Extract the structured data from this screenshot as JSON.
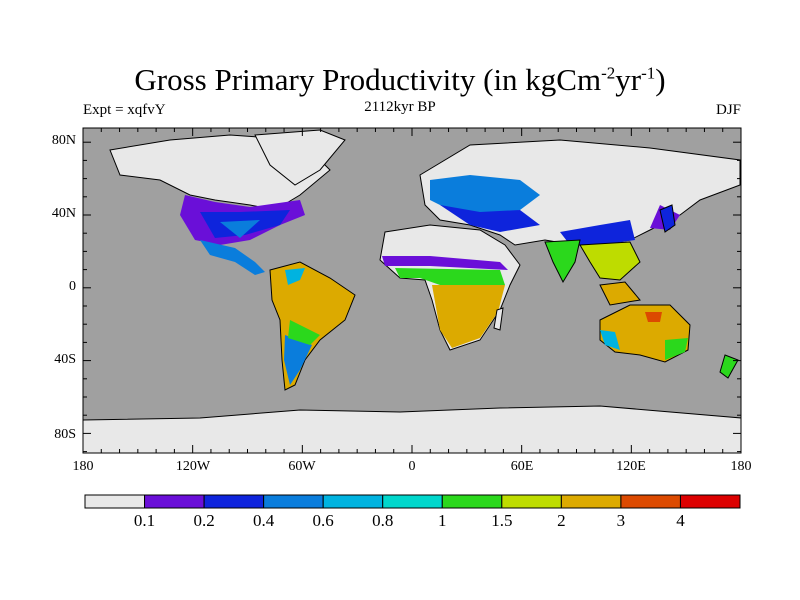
{
  "title": {
    "main": "Gross Primary Productivity (in kgCm",
    "exp1": "-2",
    "mid": "yr",
    "exp2": "-1",
    "end": ")"
  },
  "subtitle": {
    "left": "Expt = xqfvY",
    "center": "2112kyr BP",
    "right": "DJF"
  },
  "axes": {
    "lat_ticks": [
      "80N",
      "40N",
      "0",
      "40S",
      "80S"
    ],
    "lon_ticks": [
      "180",
      "120W",
      "60W",
      "0",
      "60E",
      "120E",
      "180"
    ]
  },
  "colorbar": {
    "labels": [
      "0.1",
      "0.2",
      "0.4",
      "0.6",
      "0.8",
      "1",
      "1.5",
      "2",
      "3",
      "4"
    ],
    "colors": [
      "#e8e8e8",
      "#6a0fd8",
      "#0e24dc",
      "#0a7ddc",
      "#00b3e0",
      "#00d7cc",
      "#2bd81c",
      "#bedc00",
      "#dcaa00",
      "#dc4a00",
      "#dc0000"
    ]
  },
  "colors": {
    "ocean": "#a0a0a0",
    "land_low": "#e8e8e8"
  }
}
